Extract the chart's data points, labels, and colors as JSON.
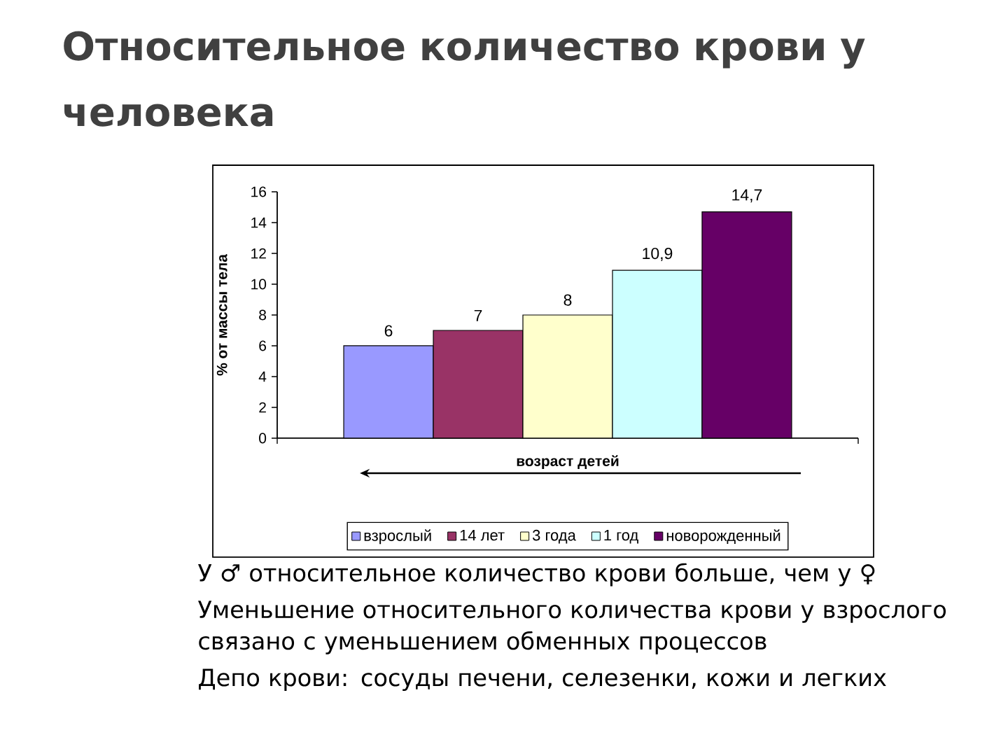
{
  "chart_data": {
    "type": "bar",
    "title": "Относительное количество крови у человека",
    "xlabel": "возраст детей",
    "ylabel": "% от массы тела",
    "categories": [
      null
    ],
    "series": [
      {
        "name": "взрослый",
        "color": "#9999ff",
        "values": [
          6
        ],
        "value_labels": [
          "6"
        ]
      },
      {
        "name": "14 лет",
        "color": "#993366",
        "values": [
          7
        ],
        "value_labels": [
          "7"
        ]
      },
      {
        "name": "3 года",
        "color": "#ffffcc",
        "values": [
          8
        ],
        "value_labels": [
          "8"
        ]
      },
      {
        "name": "1 год",
        "color": "#ccffff",
        "values": [
          10.9
        ],
        "value_labels": [
          "10,9"
        ]
      },
      {
        "name": "новорожденный",
        "color": "#660066",
        "values": [
          14.7
        ],
        "value_labels": [
          "14,7"
        ]
      }
    ],
    "ylim": [
      0,
      16
    ],
    "yticks": [
      0,
      2,
      4,
      6,
      8,
      10,
      12,
      14,
      16
    ],
    "legend": "bottom",
    "tick_labels": "y",
    "annotations": [
      "У ♂ относительное количество крови больше, чем у ♀",
      "Уменьшение относительного количества крови у взрослого связано с уменьшением обменных процессов",
      "Депо крови: сосуды печени, селезенки, кожи и легких"
    ]
  }
}
